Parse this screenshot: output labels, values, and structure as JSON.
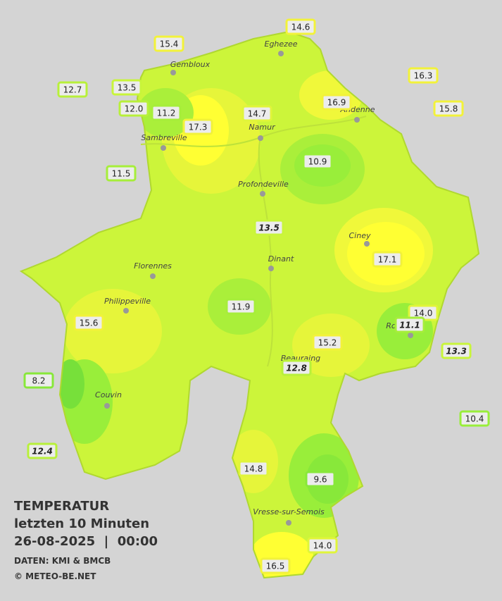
{
  "header": {
    "title": "TEMPERATUR",
    "subtitle": "letzten 10 Minuten",
    "datetime": "26-08-2025  |  00:00",
    "source": "DATEN: KMI & BMCB",
    "credit": "© METEO-BE.NET"
  },
  "cities": [
    "Eghezee",
    "Gembloux",
    "Andenne",
    "Namur",
    "Sambreville",
    "Profondeville",
    "Ciney",
    "Dinant",
    "Florennes",
    "Philippeville",
    "Rochefort",
    "Beauraing",
    "Couvin",
    "Vresse-sur-Semois"
  ],
  "stations": [
    {
      "label": "14.6",
      "color": "#f2f23a"
    },
    {
      "label": "15.4",
      "color": "#f2f23a"
    },
    {
      "label": "16.3",
      "color": "#f2f23a"
    },
    {
      "label": "12.7",
      "color": "#b8f03a"
    },
    {
      "label": "13.5",
      "color": "#c8f53a"
    },
    {
      "label": "15.8",
      "color": "#f2f23a"
    },
    {
      "label": "12.0",
      "color": "#b8f03a"
    },
    {
      "label": "11.2",
      "color": "#a6ee3a"
    },
    {
      "label": "16.9",
      "color": "#f2f23a"
    },
    {
      "label": "14.7",
      "color": "#e0f53a"
    },
    {
      "label": "17.3",
      "color": "#f2f23a"
    },
    {
      "label": "10.9",
      "color": "#99ee3a"
    },
    {
      "label": "11.5",
      "color": "#a6ee3a"
    },
    {
      "label": "13.5",
      "color": "#c8f53a",
      "italic": true
    },
    {
      "label": "17.1",
      "color": "#f2f23a"
    },
    {
      "label": "11.9",
      "color": "#a6ee3a"
    },
    {
      "label": "14.0",
      "color": "#e0f53a"
    },
    {
      "label": "15.6",
      "color": "#f2f23a"
    },
    {
      "label": "11.1",
      "color": "#a6ee3a",
      "italic": true
    },
    {
      "label": "15.2",
      "color": "#f2f23a"
    },
    {
      "label": "13.3",
      "color": "#c8f53a",
      "italic": true
    },
    {
      "label": "12.8",
      "color": "#b8f03a",
      "italic": true
    },
    {
      "label": "8.2",
      "color": "#88e83a"
    },
    {
      "label": "10.4",
      "color": "#99ee3a"
    },
    {
      "label": "12.4",
      "color": "#b8f03a",
      "italic": true
    },
    {
      "label": "14.8",
      "color": "#e0f53a"
    },
    {
      "label": "9.6",
      "color": "#88e83a"
    },
    {
      "label": "14.0",
      "color": "#e0f53a"
    },
    {
      "label": "16.5",
      "color": "#f2f23a"
    }
  ]
}
